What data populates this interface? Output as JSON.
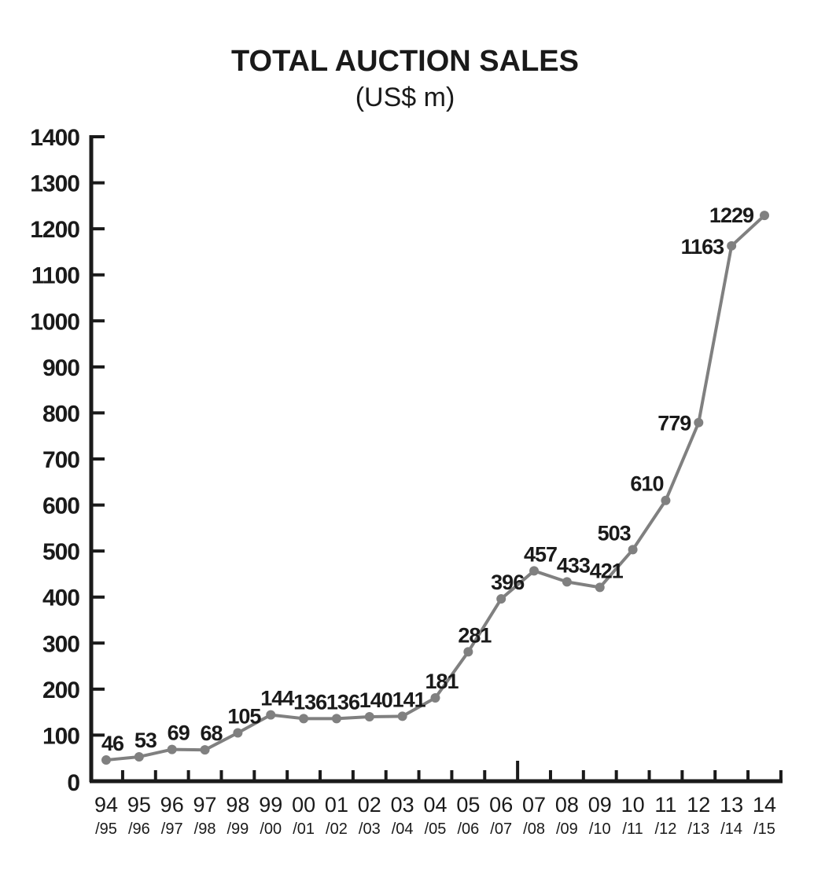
{
  "chart_data": {
    "type": "line",
    "title": "TOTAL AUCTION SALES",
    "subtitle": "(US$ m)",
    "xlabel": "",
    "ylabel": "",
    "ylim": [
      0,
      1400
    ],
    "yticks": [
      0,
      100,
      200,
      300,
      400,
      500,
      600,
      700,
      800,
      900,
      1000,
      1100,
      1200,
      1300,
      1400
    ],
    "grid": false,
    "categories": [
      {
        "top": "94",
        "bottom": "/95"
      },
      {
        "top": "95",
        "bottom": "/96"
      },
      {
        "top": "96",
        "bottom": "/97"
      },
      {
        "top": "97",
        "bottom": "/98"
      },
      {
        "top": "98",
        "bottom": "/99"
      },
      {
        "top": "99",
        "bottom": "/00"
      },
      {
        "top": "00",
        "bottom": "/01"
      },
      {
        "top": "01",
        "bottom": "/02"
      },
      {
        "top": "02",
        "bottom": "/03"
      },
      {
        "top": "03",
        "bottom": "/04"
      },
      {
        "top": "04",
        "bottom": "/05"
      },
      {
        "top": "05",
        "bottom": "/06"
      },
      {
        "top": "06",
        "bottom": "/07"
      },
      {
        "top": "07",
        "bottom": "/08"
      },
      {
        "top": "08",
        "bottom": "/09"
      },
      {
        "top": "09",
        "bottom": "/10"
      },
      {
        "top": "10",
        "bottom": "/11"
      },
      {
        "top": "11",
        "bottom": "/12"
      },
      {
        "top": "12",
        "bottom": "/13"
      },
      {
        "top": "13",
        "bottom": "/14"
      },
      {
        "top": "14",
        "bottom": "/15"
      }
    ],
    "series": [
      {
        "name": "Total auction sales",
        "values": [
          46,
          53,
          69,
          68,
          105,
          144,
          136,
          136,
          140,
          141,
          181,
          281,
          396,
          457,
          433,
          421,
          503,
          610,
          779,
          1163,
          1229
        ]
      }
    ],
    "colors": {
      "line": "#808080",
      "marker": "#808080",
      "axis": "#1a1a1a",
      "text": "#1a1a1a"
    }
  }
}
